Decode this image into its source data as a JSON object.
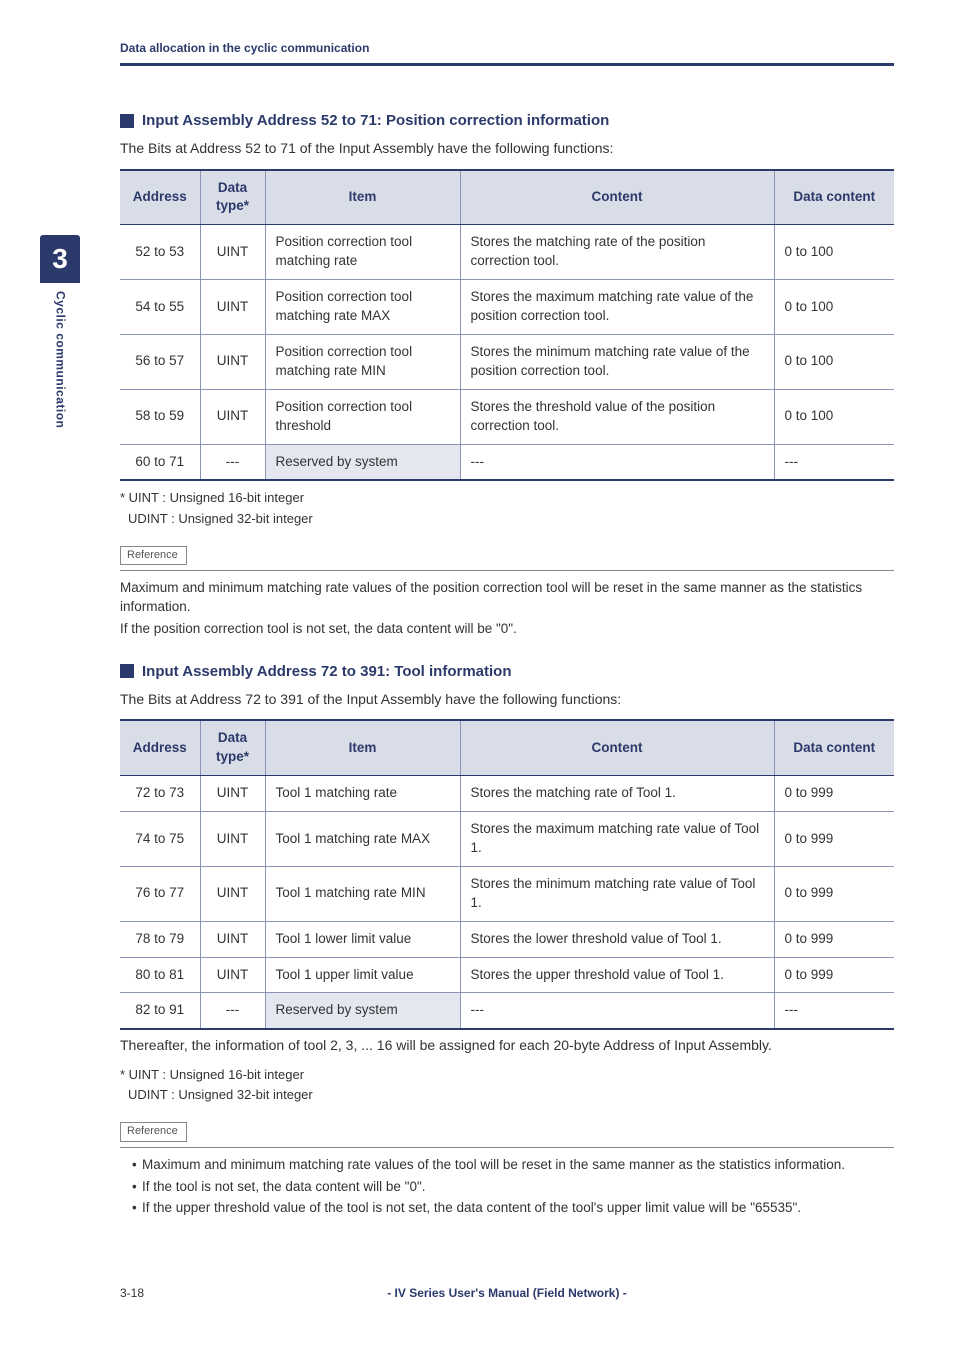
{
  "header": {
    "label": "Data allocation in the cyclic communication"
  },
  "sidebar": {
    "chapter_number": "3",
    "chapter_label": "Cyclic communication"
  },
  "section1": {
    "title": "Input Assembly Address 52 to 71: Position correction information",
    "intro": "The Bits at Address 52 to 71 of the Input Assembly have the following functions:",
    "headers": {
      "c0": "Address",
      "c1": "Data type*",
      "c2": "Item",
      "c3": "Content",
      "c4": "Data content"
    },
    "rows": [
      {
        "addr": "52 to 53",
        "type": "UINT",
        "item": "Position correction tool matching rate",
        "content": "Stores the matching rate of the position correction tool.",
        "data": "0 to 100"
      },
      {
        "addr": "54 to 55",
        "type": "UINT",
        "item": "Position correction tool matching rate MAX",
        "content": "Stores the maximum matching rate value of the position correction tool.",
        "data": "0 to 100"
      },
      {
        "addr": "56 to 57",
        "type": "UINT",
        "item": "Position correction tool matching rate MIN",
        "content": "Stores the minimum matching rate value of the position correction tool.",
        "data": "0 to 100"
      },
      {
        "addr": "58 to 59",
        "type": "UINT",
        "item": "Position correction tool threshold",
        "content": "Stores the threshold value of the position correction tool.",
        "data": "0 to 100"
      },
      {
        "addr": "60 to 71",
        "type": "---",
        "item": "Reserved by system",
        "content": "---",
        "data": "---",
        "reserved": true
      }
    ],
    "footnote1": "* UINT :   Unsigned 16-bit integer",
    "footnote2": "  UDINT : Unsigned 32-bit integer",
    "ref_label": "Reference",
    "ref_text1": "Maximum and minimum matching rate values of the position correction tool will be reset in the same manner as the statistics information.",
    "ref_text2": "If the position correction tool is not set, the data content will be \"0\"."
  },
  "section2": {
    "title": "Input Assembly Address 72 to 391: Tool information",
    "intro": "The Bits at Address 72 to 391 of the Input Assembly have the following functions:",
    "headers": {
      "c0": "Address",
      "c1": "Data type*",
      "c2": "Item",
      "c3": "Content",
      "c4": "Data content"
    },
    "rows": [
      {
        "addr": "72 to 73",
        "type": "UINT",
        "item": "Tool 1 matching rate",
        "content": "Stores the matching rate of Tool 1.",
        "data": "0 to 999"
      },
      {
        "addr": "74 to 75",
        "type": "UINT",
        "item": "Tool 1 matching rate MAX",
        "content": "Stores the maximum matching rate value of Tool 1.",
        "data": "0 to 999"
      },
      {
        "addr": "76 to 77",
        "type": "UINT",
        "item": "Tool 1 matching rate MIN",
        "content": "Stores the minimum matching rate value of Tool 1.",
        "data": "0 to 999"
      },
      {
        "addr": "78 to 79",
        "type": "UINT",
        "item": "Tool 1 lower limit value",
        "content": "Stores the lower threshold value of Tool 1.",
        "data": "0 to 999"
      },
      {
        "addr": "80 to 81",
        "type": "UINT",
        "item": "Tool 1 upper limit value",
        "content": "Stores the upper threshold value of Tool 1.",
        "data": "0 to 999"
      },
      {
        "addr": "82 to 91",
        "type": "---",
        "item": "Reserved by system",
        "content": "---",
        "data": "---",
        "reserved": true
      }
    ],
    "post_table": "Thereafter, the information of tool 2, 3, ... 16 will be assigned for each 20-byte Address of Input Assembly.",
    "footnote1": "* UINT :   Unsigned 16-bit integer",
    "footnote2": "  UDINT : Unsigned 32-bit integer",
    "ref_label": "Reference",
    "ref_bullets": [
      "Maximum and minimum matching rate values of the tool will be reset in the same manner as the statistics information.",
      "If the tool is not set, the data content will be \"0\".",
      "If the upper threshold value of the tool is not set, the data content of the tool's upper limit value will be \"65535\"."
    ]
  },
  "footer": {
    "page": "3-18",
    "title": "- IV Series User's Manual (Field Network) -"
  }
}
